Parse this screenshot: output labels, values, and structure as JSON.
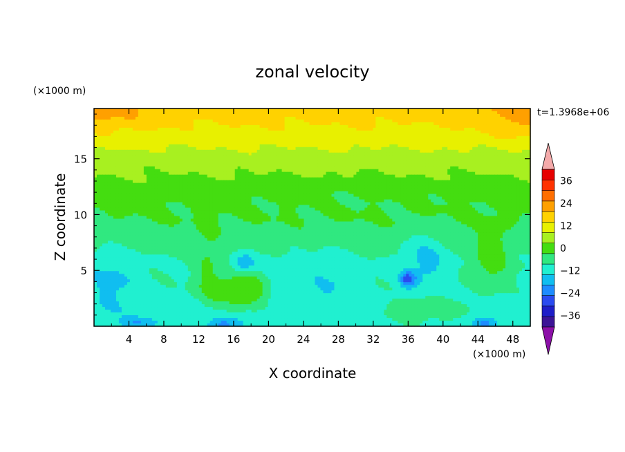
{
  "chart_data": {
    "type": "heatmap",
    "title": "zonal velocity",
    "xlabel": "X coordinate",
    "ylabel": "Z coordinate",
    "x_units": "(×1000 m)",
    "y_units": "(×1000 m)",
    "time_label": "t=1.3968e+06",
    "xlim": [
      0,
      50
    ],
    "ylim": [
      0,
      19.5
    ],
    "x_ticks": [
      4,
      8,
      12,
      16,
      20,
      24,
      28,
      32,
      36,
      40,
      44,
      48
    ],
    "y_ticks": [
      5,
      10,
      15
    ],
    "x_tick_labels": [
      "4",
      "8",
      "12",
      "16",
      "20",
      "24",
      "28",
      "32",
      "36",
      "40",
      "44",
      "48"
    ],
    "y_tick_labels": [
      "5",
      "10",
      "15"
    ],
    "colorbar": {
      "levels": [
        -42,
        -36,
        -30,
        -24,
        -18,
        -12,
        -6,
        0,
        6,
        12,
        18,
        24,
        30,
        36,
        42
      ],
      "tick_values": [
        -36,
        -24,
        -12,
        0,
        12,
        24,
        36
      ],
      "tick_labels": [
        "−36",
        "−24",
        "−12",
        "0",
        "12",
        "24",
        "36"
      ],
      "colors": [
        "#3c1496",
        "#1e1ec8",
        "#2a4bf0",
        "#1e8cff",
        "#10bef0",
        "#20f0d0",
        "#30e880",
        "#44dd10",
        "#a8f020",
        "#e8f000",
        "#ffd200",
        "#ffa000",
        "#ff6e00",
        "#ff3200",
        "#e60000"
      ],
      "under_color": "#8c10a8",
      "over_color": "#f4aaaa"
    },
    "field": {
      "background_u": [
        [
          0,
          -8
        ],
        [
          1.5,
          -9
        ],
        [
          3.5,
          -7
        ],
        [
          6,
          -6
        ],
        [
          8,
          -3
        ],
        [
          9.5,
          0
        ],
        [
          11,
          1
        ],
        [
          13,
          5
        ],
        [
          15,
          9
        ],
        [
          16.5,
          14
        ],
        [
          18,
          18
        ],
        [
          19.5,
          21
        ]
      ],
      "features": [
        {
          "x": 2,
          "z": 4.2,
          "sx": 3.0,
          "sz": 2.5,
          "u": -7
        },
        {
          "x": 17,
          "z": 3.2,
          "sx": 4.0,
          "sz": 1.6,
          "u": 14
        },
        {
          "x": 13,
          "z": 5.5,
          "sx": 1.4,
          "sz": 3.5,
          "u": 6
        },
        {
          "x": 17.2,
          "z": 5.6,
          "sx": 1.3,
          "sz": 0.9,
          "u": -11
        },
        {
          "x": 21,
          "z": 3.5,
          "sx": 1.8,
          "sz": 2.5,
          "u": -6
        },
        {
          "x": 27,
          "z": 4.0,
          "sx": 3.5,
          "sz": 2.5,
          "u": -5
        },
        {
          "x": 36,
          "z": 4.2,
          "sx": 0.9,
          "sz": 0.7,
          "u": -18
        },
        {
          "x": 38,
          "z": 6.0,
          "sx": 2.5,
          "sz": 2.5,
          "u": -8
        },
        {
          "x": 38,
          "z": 1.5,
          "sx": 5.0,
          "sz": 1.0,
          "u": 8
        },
        {
          "x": 45.5,
          "z": 6.0,
          "sx": 2.0,
          "sz": 2.5,
          "u": 10
        },
        {
          "x": 15,
          "z": 0.2,
          "sx": 2.0,
          "sz": 0.6,
          "u": -12
        },
        {
          "x": 5,
          "z": 0.3,
          "sx": 2.0,
          "sz": 0.5,
          "u": -10
        },
        {
          "x": 45,
          "z": 0.3,
          "sx": 1.5,
          "sz": 0.5,
          "u": -12
        },
        {
          "x": 1,
          "z": 19,
          "sx": 5.0,
          "sz": 1.5,
          "u": 6
        },
        {
          "x": 49,
          "z": 18.5,
          "sx": 4.0,
          "sz": 1.8,
          "u": 7
        },
        {
          "x": 30,
          "z": 12.0,
          "sx": 12.0,
          "sz": 1.2,
          "u": -2
        }
      ]
    }
  }
}
